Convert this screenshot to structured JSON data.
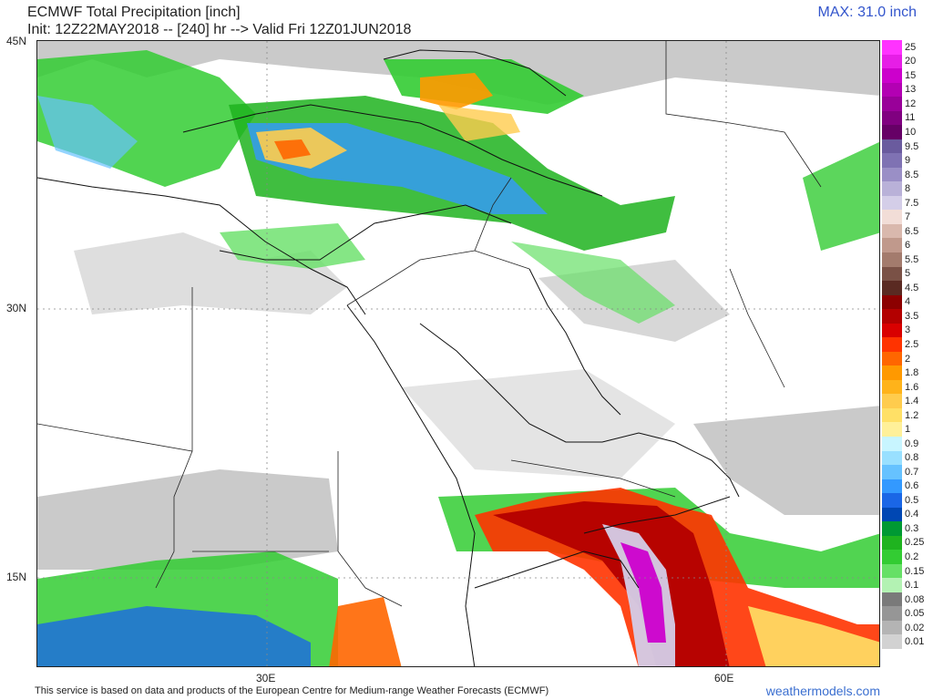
{
  "header": {
    "title": "ECMWF Total Precipitation [inch]",
    "subtitle": "Init: 12Z22MAY2018 -- [240] hr --> Valid Fri 12Z01JUN2018",
    "max": "MAX: 31.0 inch"
  },
  "axes": {
    "lat_labels": [
      "45N",
      "30N",
      "15N"
    ],
    "lon_labels": [
      "30E",
      "60E"
    ]
  },
  "legend": {
    "levels": [
      "25",
      "20",
      "15",
      "13",
      "12",
      "11",
      "10",
      "9.5",
      "9",
      "8.5",
      "8",
      "7.5",
      "7",
      "6.5",
      "6",
      "5.5",
      "5",
      "4.5",
      "4",
      "3.5",
      "3",
      "2.5",
      "2",
      "1.8",
      "1.6",
      "1.4",
      "1.2",
      "1",
      "0.9",
      "0.8",
      "0.7",
      "0.6",
      "0.5",
      "0.4",
      "0.3",
      "0.25",
      "0.2",
      "0.15",
      "0.1",
      "0.08",
      "0.05",
      "0.02",
      "0.01"
    ],
    "colors": [
      "#ff33ff",
      "#e61ee6",
      "#cc00cc",
      "#b300b3",
      "#990099",
      "#800080",
      "#660066",
      "#6a5b9e",
      "#7f72b3",
      "#9a8fc6",
      "#b9b1d8",
      "#d4cee8",
      "#f2ddd7",
      "#d9b8ad",
      "#c0998c",
      "#a37b6d",
      "#7a5146",
      "#5a2a22",
      "#8c0000",
      "#b30000",
      "#d90000",
      "#ff3300",
      "#ff6600",
      "#ff9900",
      "#ffb31a",
      "#ffcc4d",
      "#ffe066",
      "#fff099",
      "#c8f5ff",
      "#99e0ff",
      "#66c2ff",
      "#3399ff",
      "#1a66e6",
      "#0047b3",
      "#009933",
      "#1fb31f",
      "#33cc33",
      "#66e066",
      "#b3f2b3",
      "#7a7a7a",
      "#969696",
      "#b4b4b4",
      "#d2d2d2"
    ]
  },
  "footer": {
    "attribution": "This service is based on data and products of the European Centre for Medium-range Weather Forecasts (ECMWF)",
    "brand": "weathermodels.com"
  }
}
